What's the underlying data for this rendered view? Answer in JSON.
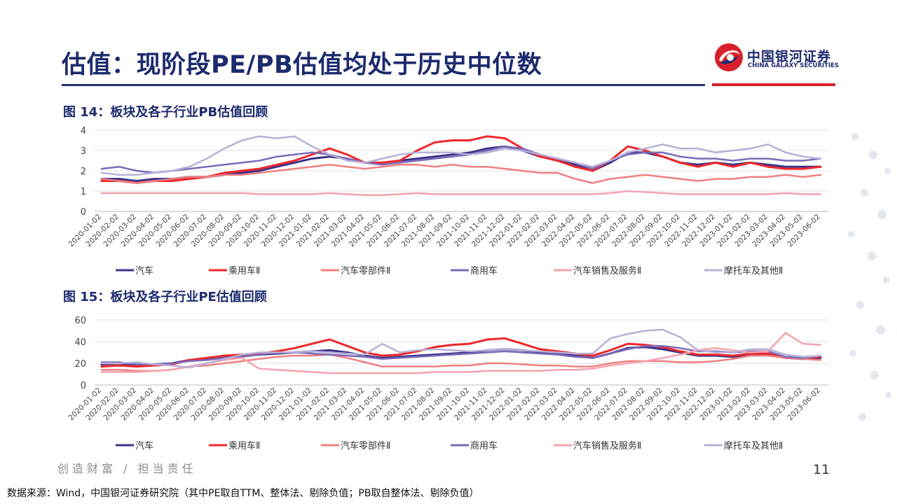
{
  "page": {
    "title": "估值：现阶段PE/PB估值均处于历史中位数",
    "logo_cn": "中国银河证券",
    "logo_en": "CHINA GALAXY SECURITIES",
    "slogan": "创造财富 / 担当责任",
    "page_number": "11",
    "source": "数据来源：Wind，中国银河证券研究院（其中PE取自TTM、整体法、剔除负值；PB取自整体法、剔除负值）"
  },
  "colors": {
    "brand_blue": "#1c2a6e",
    "brand_red": "#d8202c"
  },
  "x_labels": [
    "2020-01-02",
    "2020-02-02",
    "2020-03-02",
    "2020-04-02",
    "2020-05-02",
    "2020-06-02",
    "2020-07-02",
    "2020-08-02",
    "2020-09-02",
    "2020-10-02",
    "2020-11-02",
    "2020-12-02",
    "2021-01-02",
    "2021-02-02",
    "2021-03-02",
    "2021-04-02",
    "2021-05-02",
    "2021-06-02",
    "2021-07-02",
    "2021-08-02",
    "2021-09-02",
    "2021-10-02",
    "2021-11-02",
    "2021-12-02",
    "2022-01-02",
    "2022-02-02",
    "2022-03-02",
    "2022-04-02",
    "2022-05-02",
    "2022-06-02",
    "2022-07-02",
    "2022-08-02",
    "2022-09-02",
    "2022-10-02",
    "2022-11-02",
    "2022-12-02",
    "2023-01-02",
    "2023-02-02",
    "2023-03-02",
    "2023-04-02",
    "2023-05-02",
    "2023-06-02"
  ],
  "chart_data": [
    {
      "id": "pb",
      "figure_title": "图 14：板块及各子行业PB估值回顾",
      "type": "line",
      "ylim": [
        0,
        4
      ],
      "yticks": [
        0,
        1,
        2,
        3,
        4
      ],
      "grid": true,
      "legend_position": "bottom",
      "series": [
        {
          "name": "汽车",
          "color": "#3b3288",
          "width": 3,
          "values": [
            1.6,
            1.6,
            1.5,
            1.6,
            1.6,
            1.7,
            1.7,
            1.8,
            1.9,
            2.0,
            2.2,
            2.4,
            2.6,
            2.7,
            2.6,
            2.4,
            2.4,
            2.5,
            2.6,
            2.7,
            2.8,
            2.9,
            3.1,
            3.2,
            3.0,
            2.7,
            2.6,
            2.3,
            2.0,
            2.4,
            2.9,
            2.9,
            2.7,
            2.4,
            2.3,
            2.4,
            2.3,
            2.4,
            2.3,
            2.2,
            2.2,
            2.2
          ]
        },
        {
          "name": "乘用车Ⅱ",
          "color": "#f0272a",
          "width": 3,
          "values": [
            1.5,
            1.5,
            1.4,
            1.5,
            1.5,
            1.6,
            1.7,
            1.9,
            2.0,
            2.1,
            2.3,
            2.5,
            2.8,
            3.1,
            2.8,
            2.4,
            2.4,
            2.5,
            3.0,
            3.4,
            3.5,
            3.5,
            3.7,
            3.6,
            3.1,
            2.7,
            2.5,
            2.2,
            2.0,
            2.5,
            3.2,
            3.0,
            2.7,
            2.4,
            2.2,
            2.4,
            2.2,
            2.4,
            2.2,
            2.1,
            2.1,
            2.2
          ]
        },
        {
          "name": "汽车零部件Ⅱ",
          "color": "#f08080",
          "width": 2.5,
          "values": [
            1.6,
            1.5,
            1.4,
            1.5,
            1.6,
            1.7,
            1.7,
            1.8,
            1.8,
            1.9,
            2.0,
            2.1,
            2.2,
            2.3,
            2.2,
            2.1,
            2.2,
            2.3,
            2.3,
            2.2,
            2.3,
            2.2,
            2.2,
            2.1,
            2.0,
            1.9,
            1.9,
            1.6,
            1.4,
            1.6,
            1.7,
            1.8,
            1.7,
            1.6,
            1.5,
            1.6,
            1.6,
            1.7,
            1.7,
            1.8,
            1.7,
            1.8
          ]
        },
        {
          "name": "商用车",
          "color": "#7b6ab8",
          "width": 2.5,
          "values": [
            2.1,
            2.2,
            2.0,
            1.9,
            2.0,
            2.1,
            2.2,
            2.3,
            2.4,
            2.5,
            2.7,
            2.8,
            2.9,
            2.8,
            2.6,
            2.4,
            2.3,
            2.4,
            2.5,
            2.6,
            2.7,
            2.8,
            3.0,
            3.2,
            3.1,
            2.8,
            2.6,
            2.4,
            2.1,
            2.5,
            2.8,
            2.9,
            2.9,
            2.7,
            2.6,
            2.6,
            2.5,
            2.6,
            2.6,
            2.5,
            2.5,
            2.6
          ]
        },
        {
          "name": "汽车销售及服务Ⅱ",
          "color": "#f5a3ad",
          "width": 2.5,
          "values": [
            0.9,
            0.9,
            0.9,
            0.9,
            0.9,
            0.9,
            0.9,
            0.9,
            0.9,
            0.85,
            0.85,
            0.85,
            0.85,
            0.9,
            0.85,
            0.8,
            0.8,
            0.85,
            0.9,
            0.85,
            0.85,
            0.85,
            0.85,
            0.85,
            0.85,
            0.85,
            0.85,
            0.85,
            0.85,
            0.9,
            1.0,
            0.95,
            0.9,
            0.85,
            0.85,
            0.85,
            0.85,
            0.85,
            0.85,
            0.9,
            0.85,
            0.85
          ]
        },
        {
          "name": "摩托车及其他Ⅱ",
          "color": "#b8b0d8",
          "width": 2.5,
          "values": [
            1.9,
            1.8,
            1.8,
            1.9,
            2.0,
            2.2,
            2.6,
            3.1,
            3.5,
            3.7,
            3.6,
            3.7,
            3.2,
            2.8,
            2.5,
            2.4,
            2.6,
            2.8,
            2.9,
            2.9,
            2.9,
            2.8,
            2.9,
            3.1,
            3.0,
            2.8,
            2.6,
            2.4,
            2.2,
            2.5,
            2.9,
            3.1,
            3.3,
            3.1,
            3.1,
            2.9,
            3.0,
            3.1,
            3.3,
            2.9,
            2.7,
            2.6
          ]
        }
      ]
    },
    {
      "id": "pe",
      "figure_title": "图 15：板块及各子行业PE估值回顾",
      "type": "line",
      "ylim": [
        0,
        60
      ],
      "yticks": [
        0,
        20,
        40,
        60
      ],
      "grid": true,
      "legend_position": "bottom",
      "series": [
        {
          "name": "汽车",
          "color": "#3b3288",
          "width": 3,
          "values": [
            19,
            20,
            18,
            19,
            20,
            23,
            24,
            26,
            27,
            28,
            29,
            30,
            31,
            32,
            30,
            27,
            25,
            26,
            27,
            28,
            29,
            30,
            32,
            33,
            32,
            30,
            29,
            27,
            25,
            29,
            34,
            35,
            33,
            30,
            27,
            27,
            26,
            28,
            28,
            25,
            24,
            25
          ]
        },
        {
          "name": "乘用车Ⅱ",
          "color": "#f0272a",
          "width": 3,
          "values": [
            17,
            18,
            17,
            18,
            19,
            23,
            25,
            27,
            28,
            29,
            31,
            34,
            38,
            42,
            36,
            30,
            27,
            28,
            31,
            35,
            37,
            38,
            42,
            43,
            38,
            33,
            31,
            29,
            27,
            32,
            38,
            37,
            35,
            31,
            28,
            28,
            27,
            29,
            29,
            25,
            25,
            26
          ]
        },
        {
          "name": "汽车零部件Ⅱ",
          "color": "#f08080",
          "width": 2.5,
          "values": [
            14,
            14,
            13,
            13,
            14,
            17,
            18,
            20,
            22,
            24,
            26,
            27,
            27,
            28,
            25,
            21,
            17,
            17,
            17,
            17,
            18,
            18,
            20,
            20,
            19,
            18,
            18,
            17,
            17,
            20,
            22,
            22,
            22,
            21,
            21,
            22,
            24,
            27,
            27,
            25,
            24,
            23
          ]
        },
        {
          "name": "商用车",
          "color": "#7b6ab8",
          "width": 2.5,
          "values": [
            21,
            21,
            19,
            19,
            20,
            22,
            23,
            25,
            26,
            28,
            30,
            30,
            29,
            28,
            27,
            26,
            24,
            25,
            26,
            27,
            28,
            29,
            30,
            31,
            30,
            29,
            28,
            26,
            25,
            29,
            33,
            36,
            36,
            34,
            31,
            31,
            30,
            31,
            31,
            26,
            25,
            27
          ]
        },
        {
          "name": "汽车销售及服务Ⅱ",
          "color": "#f5a3ad",
          "width": 2.5,
          "values": [
            12,
            12,
            12,
            13,
            14,
            17,
            20,
            23,
            25,
            15,
            14,
            13,
            12,
            11,
            11,
            11,
            11,
            11,
            11,
            12,
            12,
            12,
            13,
            13,
            13,
            13,
            14,
            14,
            15,
            18,
            20,
            22,
            25,
            28,
            32,
            34,
            32,
            30,
            31,
            48,
            38,
            37
          ]
        },
        {
          "name": "摩托车及其他Ⅱ",
          "color": "#b8b0d8",
          "width": 2.5,
          "values": [
            20,
            20,
            21,
            19,
            18,
            16,
            20,
            24,
            28,
            30,
            30,
            30,
            31,
            30,
            29,
            28,
            38,
            30,
            32,
            33,
            32,
            31,
            32,
            33,
            32,
            31,
            30,
            29,
            29,
            43,
            47,
            50,
            51,
            44,
            32,
            30,
            30,
            33,
            33,
            28,
            26,
            27
          ]
        }
      ]
    }
  ]
}
